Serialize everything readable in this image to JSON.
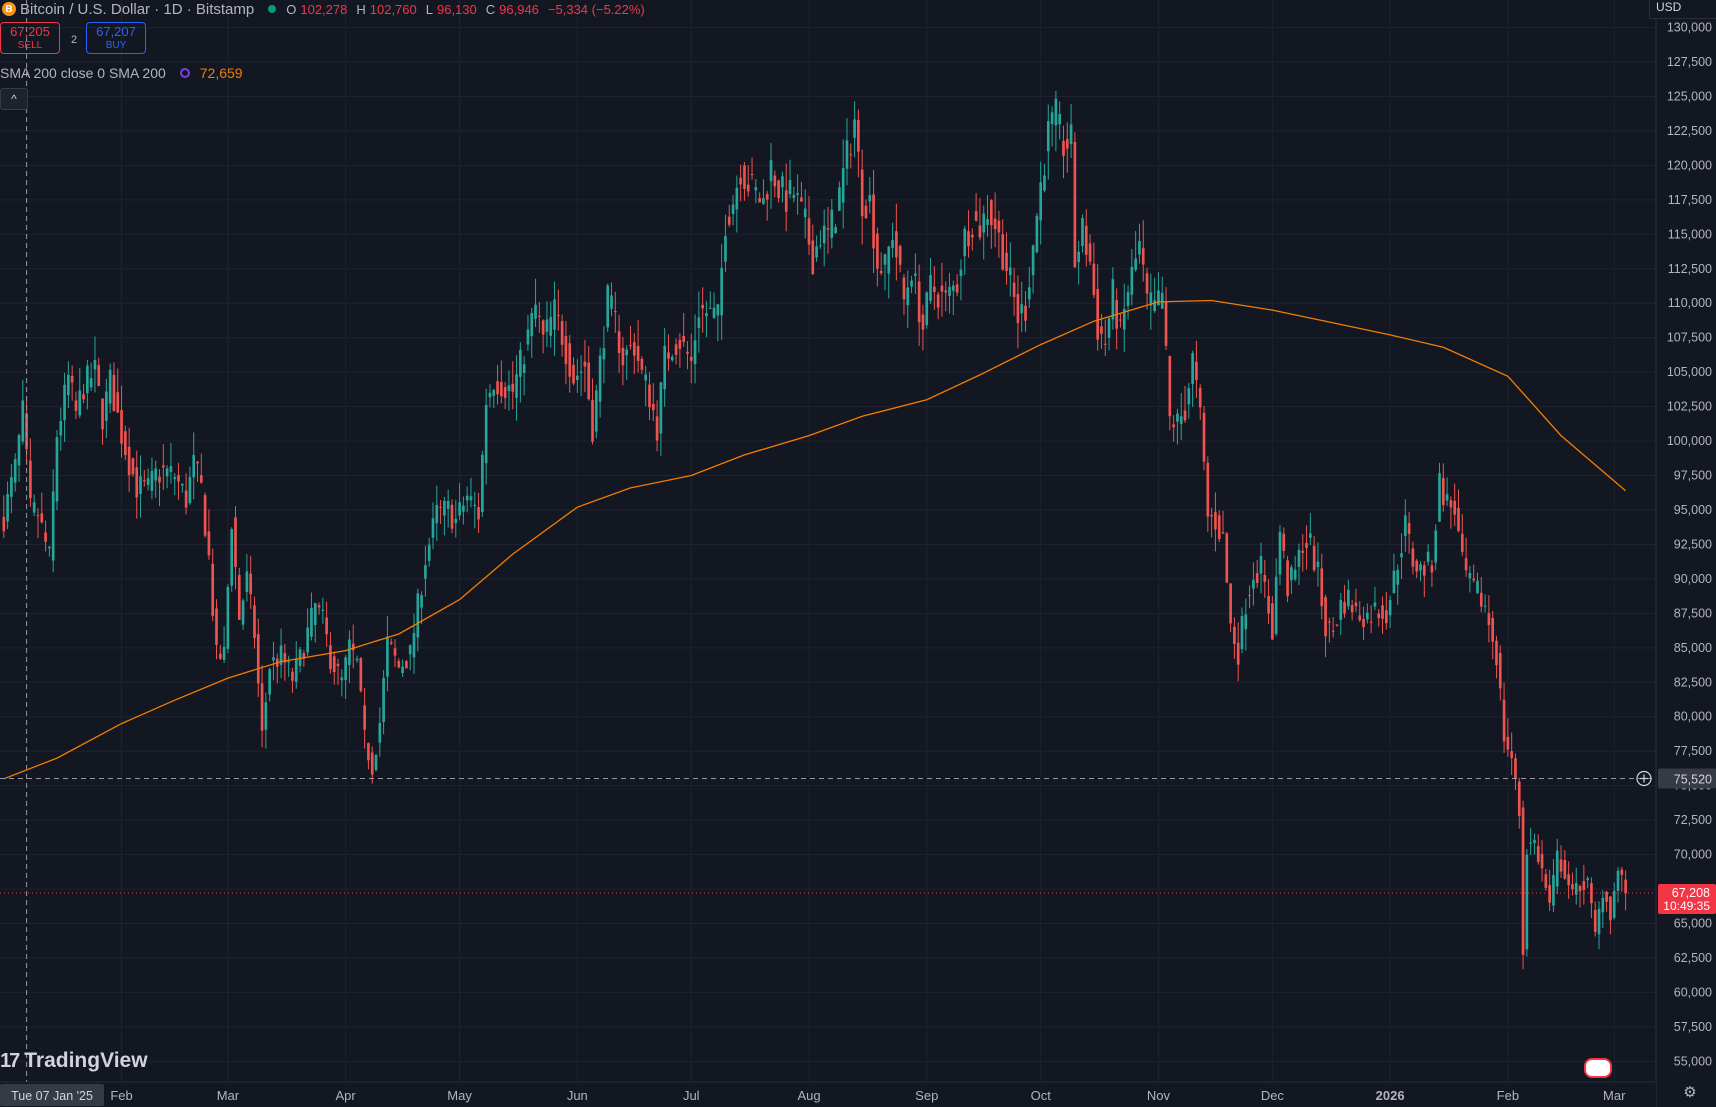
{
  "header": {
    "symbol_title": "Bitcoin / U.S. Dollar · 1D · Bitstamp",
    "coin_glyph": "B",
    "ohlc": [
      {
        "key": "O",
        "value": "102,278"
      },
      {
        "key": "H",
        "value": "102,760"
      },
      {
        "key": "L",
        "value": "96,130"
      },
      {
        "key": "C",
        "value": "96,946"
      }
    ],
    "change": "−5,334 (−5.22%)"
  },
  "trade": {
    "sell_price": "67,205",
    "sell_label": "SELL",
    "buy_price": "67,207",
    "buy_label": "BUY",
    "spread": "2"
  },
  "indicator": {
    "label": "SMA 200 close 0 SMA 200",
    "value": "72,659"
  },
  "collapse_glyph": "^",
  "currency": "USD",
  "brand": {
    "mark": "17",
    "name": "TradingView"
  },
  "settings_glyph": "⚙",
  "colors": {
    "background": "#131722",
    "grid": "#1f2330",
    "up": "#26a69a",
    "down": "#ef5350",
    "sma": "#f57c00",
    "axis_text": "#b2b5be",
    "price_tag": "#f23645",
    "crosshair_tag": "#363a45"
  },
  "chart_data": {
    "type": "candlestick",
    "title": "Bitcoin / U.S. Dollar · 1D · Bitstamp",
    "ylim": [
      53500,
      132000
    ],
    "y_ticks": [
      55000,
      57500,
      60000,
      62500,
      65000,
      67500,
      70000,
      72500,
      75000,
      77500,
      80000,
      82500,
      85000,
      87500,
      90000,
      92500,
      95000,
      97500,
      100000,
      102500,
      105000,
      107500,
      110000,
      112500,
      115000,
      117500,
      120000,
      122500,
      125000,
      127500,
      130000
    ],
    "y_tick_labels": [
      "55,000",
      "57,500",
      "60,000",
      "62,500",
      "65,000",
      "67,500",
      "70,000",
      "72,500",
      "75,000",
      "77,500",
      "80,000",
      "82,500",
      "85,000",
      "87,500",
      "90,000",
      "92,500",
      "95,000",
      "97,500",
      "100,000",
      "102,500",
      "105,000",
      "107,500",
      "110,000",
      "112,500",
      "115,000",
      "117,500",
      "120,000",
      "122,500",
      "125,000",
      "127,500",
      "130,000"
    ],
    "x_start": "2024-12-31",
    "x_end": "2026-03-12",
    "x_ticks": [
      {
        "date": "2025-02-01",
        "label": "Feb"
      },
      {
        "date": "2025-03-01",
        "label": "Mar"
      },
      {
        "date": "2025-04-01",
        "label": "Apr"
      },
      {
        "date": "2025-05-01",
        "label": "May"
      },
      {
        "date": "2025-06-01",
        "label": "Jun"
      },
      {
        "date": "2025-07-01",
        "label": "Jul"
      },
      {
        "date": "2025-08-01",
        "label": "Aug"
      },
      {
        "date": "2025-09-01",
        "label": "Sep"
      },
      {
        "date": "2025-10-01",
        "label": "Oct"
      },
      {
        "date": "2025-11-01",
        "label": "Nov"
      },
      {
        "date": "2025-12-01",
        "label": "Dec"
      },
      {
        "date": "2026-01-01",
        "label": "2026"
      },
      {
        "date": "2026-02-01",
        "label": "Feb"
      },
      {
        "date": "2026-03-01",
        "label": "Mar"
      }
    ],
    "close_series": [
      [
        "2025-01-01",
        94500
      ],
      [
        "2025-01-04",
        98000
      ],
      [
        "2025-01-06",
        102000
      ],
      [
        "2025-01-08",
        95000
      ],
      [
        "2025-01-10",
        94700
      ],
      [
        "2025-01-13",
        91500
      ],
      [
        "2025-01-15",
        100500
      ],
      [
        "2025-01-18",
        104500
      ],
      [
        "2025-01-20",
        102000
      ],
      [
        "2025-01-22",
        104000
      ],
      [
        "2025-01-25",
        105000
      ],
      [
        "2025-01-27",
        101800
      ],
      [
        "2025-01-29",
        104300
      ],
      [
        "2025-02-01",
        100500
      ],
      [
        "2025-02-03",
        98500
      ],
      [
        "2025-02-05",
        96700
      ],
      [
        "2025-02-08",
        96500
      ],
      [
        "2025-02-10",
        97500
      ],
      [
        "2025-02-12",
        97800
      ],
      [
        "2025-02-15",
        97500
      ],
      [
        "2025-02-18",
        95800
      ],
      [
        "2025-02-20",
        98300
      ],
      [
        "2025-02-22",
        96500
      ],
      [
        "2025-02-24",
        91500
      ],
      [
        "2025-02-26",
        84300
      ],
      [
        "2025-02-28",
        84500
      ],
      [
        "2025-03-02",
        94300
      ],
      [
        "2025-03-04",
        87200
      ],
      [
        "2025-03-06",
        90000
      ],
      [
        "2025-03-08",
        86000
      ],
      [
        "2025-03-10",
        78600
      ],
      [
        "2025-03-12",
        83700
      ],
      [
        "2025-03-15",
        84400
      ],
      [
        "2025-03-18",
        82800
      ],
      [
        "2025-03-20",
        84200
      ],
      [
        "2025-03-24",
        88000
      ],
      [
        "2025-03-26",
        86900
      ],
      [
        "2025-03-28",
        84300
      ],
      [
        "2025-03-31",
        82500
      ],
      [
        "2025-04-02",
        85000
      ],
      [
        "2025-04-04",
        83800
      ],
      [
        "2025-04-06",
        78300
      ],
      [
        "2025-04-08",
        76400
      ],
      [
        "2025-04-10",
        79600
      ],
      [
        "2025-04-12",
        85300
      ],
      [
        "2025-04-15",
        83600
      ],
      [
        "2025-04-18",
        84500
      ],
      [
        "2025-04-22",
        91500
      ],
      [
        "2025-04-25",
        94700
      ],
      [
        "2025-04-28",
        95000
      ],
      [
        "2025-04-30",
        94200
      ],
      [
        "2025-05-03",
        96000
      ],
      [
        "2025-05-06",
        94700
      ],
      [
        "2025-05-08",
        103000
      ],
      [
        "2025-05-10",
        104500
      ],
      [
        "2025-05-13",
        104000
      ],
      [
        "2025-05-15",
        103600
      ],
      [
        "2025-05-18",
        106500
      ],
      [
        "2025-05-21",
        109700
      ],
      [
        "2025-05-23",
        107300
      ],
      [
        "2025-05-26",
        109400
      ],
      [
        "2025-05-28",
        107700
      ],
      [
        "2025-05-31",
        104600
      ],
      [
        "2025-06-03",
        105500
      ],
      [
        "2025-06-05",
        101000
      ],
      [
        "2025-06-07",
        105600
      ],
      [
        "2025-06-09",
        110200
      ],
      [
        "2025-06-11",
        108600
      ],
      [
        "2025-06-13",
        106000
      ],
      [
        "2025-06-16",
        107000
      ],
      [
        "2025-06-18",
        104800
      ],
      [
        "2025-06-20",
        103300
      ],
      [
        "2025-06-22",
        101000
      ],
      [
        "2025-06-24",
        106000
      ],
      [
        "2025-06-26",
        107000
      ],
      [
        "2025-06-28",
        107300
      ],
      [
        "2025-07-01",
        105700
      ],
      [
        "2025-07-03",
        109600
      ],
      [
        "2025-07-06",
        109200
      ],
      [
        "2025-07-08",
        108900
      ],
      [
        "2025-07-10",
        116000
      ],
      [
        "2025-07-12",
        117500
      ],
      [
        "2025-07-14",
        119800
      ],
      [
        "2025-07-16",
        118700
      ],
      [
        "2025-07-18",
        117900
      ],
      [
        "2025-07-20",
        117300
      ],
      [
        "2025-07-22",
        119900
      ],
      [
        "2025-07-24",
        118400
      ],
      [
        "2025-07-26",
        117600
      ],
      [
        "2025-07-28",
        118000
      ],
      [
        "2025-07-31",
        115700
      ],
      [
        "2025-08-02",
        113300
      ],
      [
        "2025-08-04",
        115000
      ],
      [
        "2025-08-06",
        114900
      ],
      [
        "2025-08-08",
        116600
      ],
      [
        "2025-08-10",
        119300
      ],
      [
        "2025-08-13",
        123300
      ],
      [
        "2025-08-15",
        117500
      ],
      [
        "2025-08-17",
        117400
      ],
      [
        "2025-08-19",
        112900
      ],
      [
        "2025-08-21",
        112500
      ],
      [
        "2025-08-23",
        115200
      ],
      [
        "2025-08-26",
        110200
      ],
      [
        "2025-08-28",
        112600
      ],
      [
        "2025-08-31",
        108200
      ],
      [
        "2025-09-02",
        111200
      ],
      [
        "2025-09-04",
        110700
      ],
      [
        "2025-09-06",
        110200
      ],
      [
        "2025-09-09",
        111500
      ],
      [
        "2025-09-11",
        114800
      ],
      [
        "2025-09-13",
        116000
      ],
      [
        "2025-09-15",
        115500
      ],
      [
        "2025-09-17",
        116800
      ],
      [
        "2025-09-19",
        115700
      ],
      [
        "2025-09-22",
        112700
      ],
      [
        "2025-09-25",
        109000
      ],
      [
        "2025-09-27",
        109700
      ],
      [
        "2025-09-29",
        114300
      ],
      [
        "2025-10-01",
        118600
      ],
      [
        "2025-10-03",
        122300
      ],
      [
        "2025-10-05",
        123500
      ],
      [
        "2025-10-07",
        121400
      ],
      [
        "2025-10-09",
        121700
      ],
      [
        "2025-10-10",
        113000
      ],
      [
        "2025-10-12",
        115200
      ],
      [
        "2025-10-14",
        113000
      ],
      [
        "2025-10-16",
        108200
      ],
      [
        "2025-10-18",
        107200
      ],
      [
        "2025-10-20",
        110600
      ],
      [
        "2025-10-22",
        107600
      ],
      [
        "2025-10-24",
        111000
      ],
      [
        "2025-10-27",
        114100
      ],
      [
        "2025-10-29",
        110000
      ],
      [
        "2025-10-31",
        109600
      ],
      [
        "2025-11-02",
        110600
      ],
      [
        "2025-11-04",
        101500
      ],
      [
        "2025-11-06",
        101300
      ],
      [
        "2025-11-08",
        102300
      ],
      [
        "2025-11-10",
        105900
      ],
      [
        "2025-11-12",
        101600
      ],
      [
        "2025-11-14",
        94500
      ],
      [
        "2025-11-16",
        94200
      ],
      [
        "2025-11-18",
        92900
      ],
      [
        "2025-11-20",
        86600
      ],
      [
        "2025-11-22",
        84700
      ],
      [
        "2025-11-24",
        88300
      ],
      [
        "2025-11-26",
        90500
      ],
      [
        "2025-11-28",
        90800
      ],
      [
        "2025-12-01",
        86300
      ],
      [
        "2025-12-03",
        93500
      ],
      [
        "2025-12-05",
        89400
      ],
      [
        "2025-12-07",
        90400
      ],
      [
        "2025-12-09",
        92700
      ],
      [
        "2025-12-11",
        92500
      ],
      [
        "2025-12-13",
        90300
      ],
      [
        "2025-12-15",
        86400
      ],
      [
        "2025-12-17",
        86200
      ],
      [
        "2025-12-19",
        88100
      ],
      [
        "2025-12-21",
        88600
      ],
      [
        "2025-12-23",
        87600
      ],
      [
        "2025-12-26",
        87300
      ],
      [
        "2025-12-28",
        87800
      ],
      [
        "2025-12-31",
        87600
      ],
      [
        "2026-01-02",
        90000
      ],
      [
        "2026-01-05",
        93900
      ],
      [
        "2026-01-07",
        91300
      ],
      [
        "2026-01-09",
        90600
      ],
      [
        "2026-01-12",
        91200
      ],
      [
        "2026-01-14",
        97000
      ],
      [
        "2026-01-16",
        95500
      ],
      [
        "2026-01-18",
        95100
      ],
      [
        "2026-01-20",
        91000
      ],
      [
        "2026-01-22",
        89500
      ],
      [
        "2026-01-24",
        89000
      ],
      [
        "2026-01-26",
        88000
      ],
      [
        "2026-01-29",
        84500
      ],
      [
        "2026-01-31",
        78600
      ],
      [
        "2026-02-02",
        77000
      ],
      [
        "2026-02-04",
        73000
      ],
      [
        "2026-02-05",
        62900
      ],
      [
        "2026-02-06",
        70500
      ],
      [
        "2026-02-08",
        70900
      ],
      [
        "2026-02-10",
        68800
      ],
      [
        "2026-02-12",
        66200
      ],
      [
        "2026-02-14",
        69800
      ],
      [
        "2026-02-16",
        68800
      ],
      [
        "2026-02-18",
        66900
      ],
      [
        "2026-02-20",
        67900
      ],
      [
        "2026-02-22",
        67800
      ],
      [
        "2026-02-24",
        64100
      ],
      [
        "2026-02-26",
        67500
      ],
      [
        "2026-02-28",
        65800
      ],
      [
        "2026-03-02",
        68800
      ],
      [
        "2026-03-04",
        67208
      ]
    ],
    "sma_200_series": [
      [
        "2025-01-01",
        75500
      ],
      [
        "2025-01-15",
        77000
      ],
      [
        "2025-02-01",
        79500
      ],
      [
        "2025-02-15",
        81200
      ],
      [
        "2025-03-01",
        82800
      ],
      [
        "2025-03-15",
        84000
      ],
      [
        "2025-04-01",
        84800
      ],
      [
        "2025-04-15",
        86000
      ],
      [
        "2025-05-01",
        88500
      ],
      [
        "2025-05-15",
        91800
      ],
      [
        "2025-06-01",
        95200
      ],
      [
        "2025-06-15",
        96600
      ],
      [
        "2025-07-01",
        97500
      ],
      [
        "2025-07-15",
        99000
      ],
      [
        "2025-08-01",
        100400
      ],
      [
        "2025-08-15",
        101800
      ],
      [
        "2025-09-01",
        103000
      ],
      [
        "2025-09-15",
        104800
      ],
      [
        "2025-10-01",
        107000
      ],
      [
        "2025-10-15",
        108700
      ],
      [
        "2025-11-01",
        110100
      ],
      [
        "2025-11-15",
        110200
      ],
      [
        "2025-12-01",
        109500
      ],
      [
        "2025-12-15",
        108700
      ],
      [
        "2026-01-01",
        107700
      ],
      [
        "2026-01-15",
        106800
      ],
      [
        "2026-02-01",
        104700
      ],
      [
        "2026-02-15",
        100400
      ],
      [
        "2026-03-04",
        96400
      ]
    ],
    "current_price": {
      "label": "67,208",
      "countdown": "10:49:35",
      "value": 67208
    },
    "crosshair": {
      "price_label": "75,520",
      "value": 75520,
      "date_label": "Tue 07 Jan '25",
      "date": "2025-01-07"
    }
  }
}
